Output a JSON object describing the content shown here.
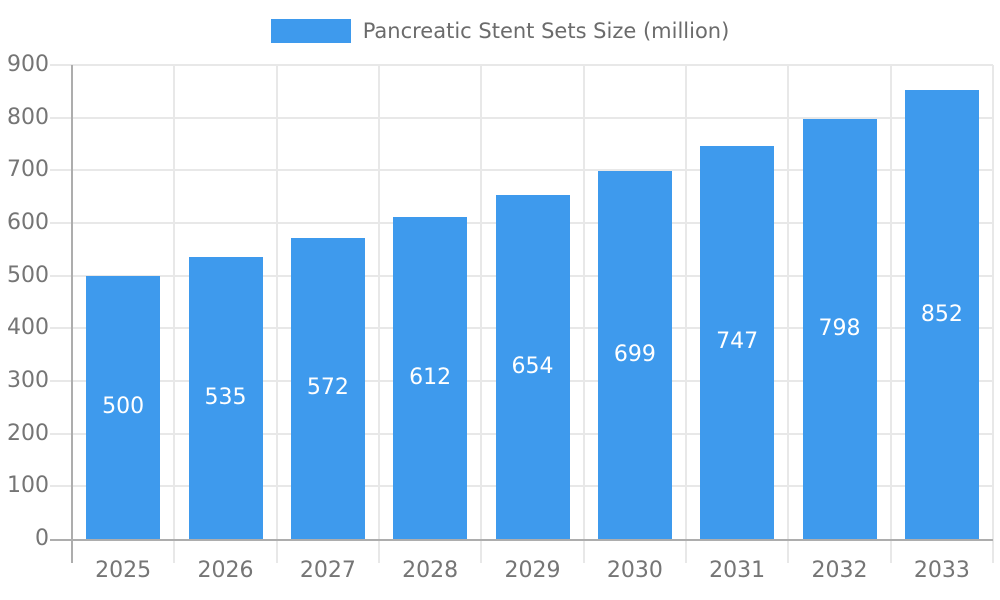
{
  "chart_data": {
    "type": "bar",
    "title": "Pancreatic Stent Sets Size (million)",
    "categories": [
      "2025",
      "2026",
      "2027",
      "2028",
      "2029",
      "2030",
      "2031",
      "2032",
      "2033"
    ],
    "values": [
      500,
      535,
      572,
      612,
      654,
      699,
      747,
      798,
      852
    ],
    "xlabel": "",
    "ylabel": "",
    "ylim": [
      0,
      900
    ],
    "ytick_step": 100,
    "grid": true,
    "legend_position": "top",
    "bar_labels_inside": true,
    "colors": {
      "bar": "#3E9AED",
      "bar_label": "#FFFFFF",
      "grid_line": "#E8E8E8",
      "axis_line": "#ADADAD",
      "axis_text": "#757575",
      "legend_text": "#6B6B6B"
    }
  }
}
